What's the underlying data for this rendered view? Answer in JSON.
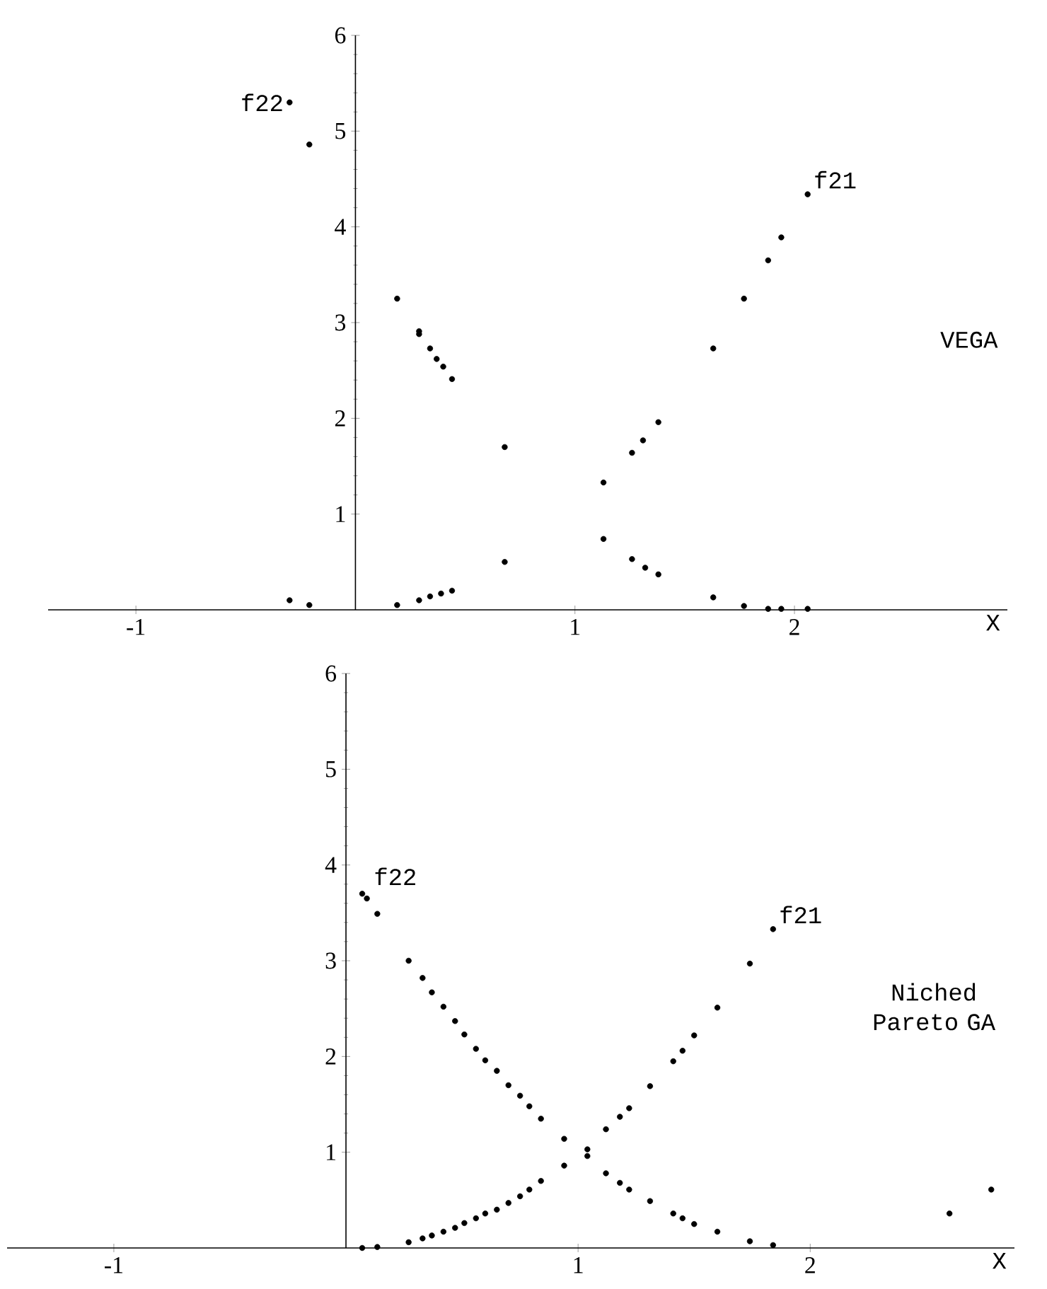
{
  "chart_data": [
    {
      "type": "scatter",
      "xlabel": "X",
      "xlim": [
        -1.4,
        2.97
      ],
      "ylim": [
        0,
        6
      ],
      "xticks": [
        -1,
        1,
        2
      ],
      "yticks": [
        1,
        2,
        3,
        4,
        5,
        6
      ],
      "annotations": [
        "VEGA"
      ],
      "series": [
        {
          "name": "f21",
          "color": "#000000",
          "x": [
            -0.3,
            -0.21,
            0.19,
            0.29,
            0.34,
            0.39,
            0.44,
            0.68,
            1.13,
            1.26,
            1.31,
            1.38,
            1.63,
            1.77,
            1.88,
            1.94,
            2.06
          ],
          "values": [
            0.1,
            0.05,
            0.05,
            0.1,
            0.14,
            0.17,
            0.2,
            0.5,
            1.33,
            1.64,
            1.77,
            1.96,
            2.73,
            3.25,
            3.65,
            3.89,
            4.34
          ]
        },
        {
          "name": "f22",
          "color": "#000000",
          "x": [
            -0.3,
            -0.21,
            0.19,
            0.29,
            0.29,
            0.34,
            0.37,
            0.4,
            0.44,
            0.68,
            1.13,
            1.26,
            1.32,
            1.38,
            1.63,
            1.77,
            1.88,
            1.94,
            2.06
          ],
          "values": [
            5.3,
            4.86,
            3.25,
            2.91,
            2.88,
            2.73,
            2.62,
            2.54,
            2.41,
            1.7,
            0.74,
            0.53,
            0.44,
            0.37,
            0.13,
            0.04,
            0.01,
            0.01,
            0.01
          ]
        }
      ]
    },
    {
      "type": "scatter",
      "xlabel": "X",
      "xlim": [
        -1.46,
        2.88
      ],
      "ylim": [
        0,
        6
      ],
      "xticks": [
        -1,
        1,
        2
      ],
      "yticks": [
        1,
        2,
        3,
        4,
        5,
        6
      ],
      "annotations": [
        "Niched Pareto GA"
      ],
      "series": [
        {
          "name": "f21",
          "color": "#000000",
          "x": [
            0.07,
            0.135,
            0.27,
            0.33,
            0.37,
            0.42,
            0.47,
            0.51,
            0.56,
            0.6,
            0.65,
            0.7,
            0.75,
            0.79,
            0.84,
            0.94,
            1.04,
            1.12,
            1.18,
            1.22,
            1.31,
            1.41,
            1.45,
            1.5,
            1.6,
            1.74,
            1.84
          ],
          "values": [
            0.0,
            0.01,
            0.06,
            0.1,
            0.13,
            0.17,
            0.21,
            0.26,
            0.31,
            0.36,
            0.4,
            0.47,
            0.54,
            0.61,
            0.7,
            0.86,
            1.03,
            1.24,
            1.37,
            1.46,
            1.69,
            1.95,
            2.06,
            2.22,
            2.51,
            2.97,
            3.33
          ]
        },
        {
          "name": "f22",
          "color": "#000000",
          "x": [
            0.07,
            0.09,
            0.135,
            0.27,
            0.33,
            0.37,
            0.42,
            0.47,
            0.51,
            0.56,
            0.6,
            0.65,
            0.7,
            0.75,
            0.79,
            0.84,
            0.94,
            1.04,
            1.12,
            1.18,
            1.22,
            1.31,
            1.41,
            1.45,
            1.5,
            1.6,
            1.74,
            1.84,
            2.6,
            2.78
          ],
          "values": [
            3.7,
            3.65,
            3.49,
            3.0,
            2.82,
            2.67,
            2.52,
            2.37,
            2.23,
            2.08,
            1.96,
            1.85,
            1.7,
            1.59,
            1.48,
            1.35,
            1.14,
            0.96,
            0.78,
            0.68,
            0.61,
            0.49,
            0.36,
            0.31,
            0.25,
            0.17,
            0.07,
            0.03,
            0.36,
            0.61
          ]
        }
      ]
    }
  ]
}
